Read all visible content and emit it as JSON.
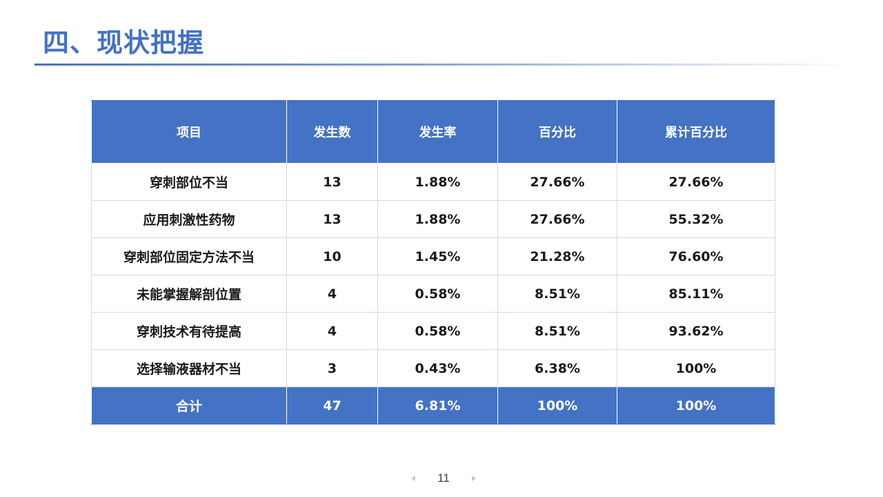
{
  "slide": {
    "title": "四、现状把握",
    "page_number": "11"
  },
  "table": {
    "headers": [
      "项目",
      "发生数",
      "发生率",
      "百分比",
      "累计百分比"
    ],
    "rows": [
      [
        "穿刺部位不当",
        "13",
        "1.88%",
        "27.66%",
        "27.66%"
      ],
      [
        "应用刺激性药物",
        "13",
        "1.88%",
        "27.66%",
        "55.32%"
      ],
      [
        "穿刺部位固定方法不当",
        "10",
        "1.45%",
        "21.28%",
        "76.60%"
      ],
      [
        "未能掌握解剖位置",
        "4",
        "0.58%",
        "8.51%",
        "85.11%"
      ],
      [
        "穿刺技术有待提高",
        "4",
        "0.58%",
        "8.51%",
        "93.62%"
      ],
      [
        "选择输液器材不当",
        "3",
        "0.43%",
        "6.38%",
        "100%"
      ]
    ],
    "total": [
      "合计",
      "47",
      "6.81%",
      "100%",
      "100%"
    ]
  },
  "colors": {
    "accent": "#4472C4",
    "header_text": "#FFFFFF",
    "body_text": "#1A1A1A",
    "grid": "#D4D8DE"
  },
  "icons": {
    "prev": "triangle-left-icon",
    "next": "triangle-right-icon"
  }
}
